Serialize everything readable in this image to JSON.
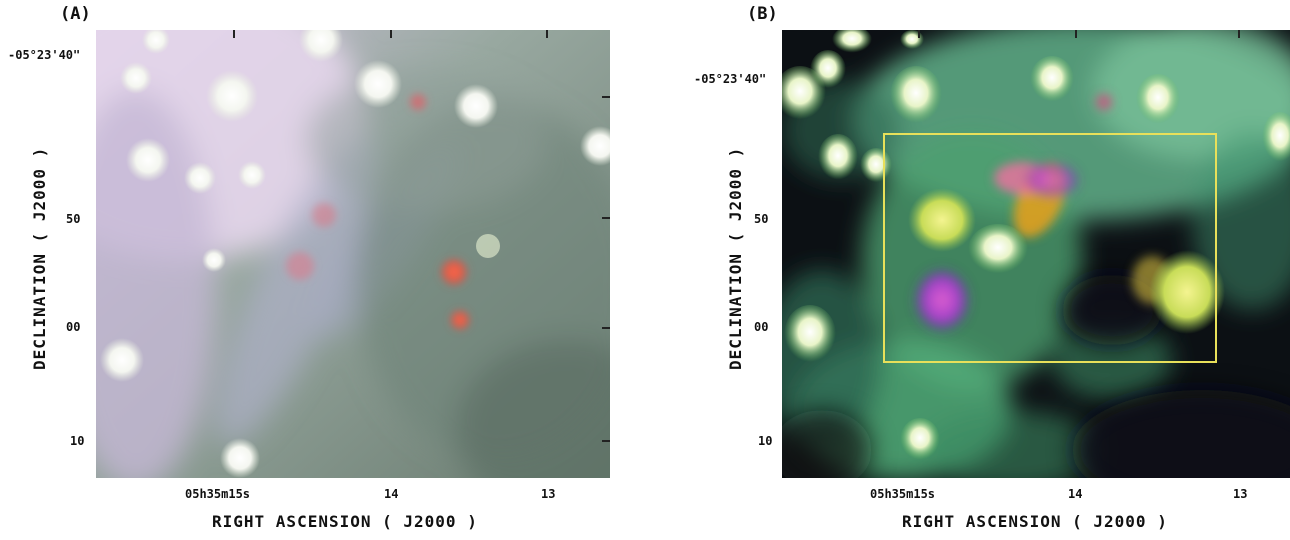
{
  "panels": {
    "a": {
      "letter": "(A)",
      "dec_ticks": [
        "-05°23'40\"",
        "50",
        "00",
        "10"
      ],
      "ra_ticks": [
        "05h35m15s",
        "14",
        "13"
      ],
      "xlabel": "RIGHT ASCENSION ( J2000 )",
      "ylabel": "DECLINATION ( J2000 )"
    },
    "b": {
      "letter": "(B)",
      "dec_ticks": [
        "-05°23'40\"",
        "50",
        "00",
        "10"
      ],
      "ra_ticks": [
        "05h35m15s",
        "14",
        "13"
      ],
      "xlabel": "RIGHT ASCENSION ( J2000 )",
      "ylabel": "DECLINATION ( J2000 )",
      "box_color": "#e8e05a"
    }
  }
}
